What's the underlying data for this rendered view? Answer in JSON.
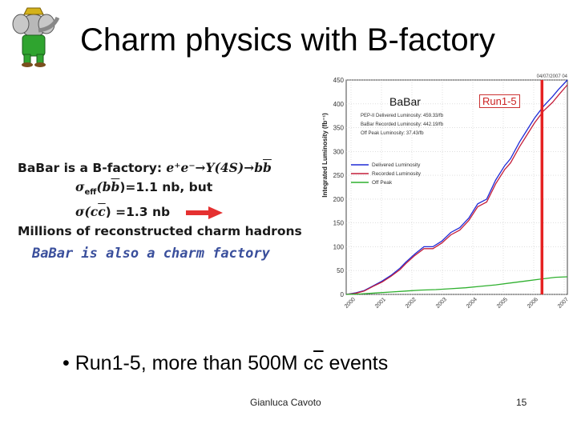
{
  "title": "Charm physics with B-factory",
  "logo": {
    "icon": "elephant-mascot-icon"
  },
  "left_block": {
    "line1_text": "BaBar is a B-factory: ",
    "line1_reaction": "e⁺e⁻→Υ(4S)→b",
    "line1_bbar": "b",
    "line2_sigma": "σ",
    "line2_sub": "eff",
    "line2_paren_open": "(b",
    "line2_bbar": "b",
    "line2_rest": ")=1.1 nb, but",
    "line3_sigma": "σ(c",
    "line3_cbar": "c",
    "line3_rest": ") =1.3 nb",
    "line4": "Millions of reconstructed charm hadrons",
    "line5": "BaBar is also a charm factory"
  },
  "bullet_text_before": "Run1-5, more than 500M c",
  "bullet_cbar": "c",
  "bullet_text_after": " events",
  "footer": {
    "author": "Gianluca Cavoto",
    "page": "15"
  },
  "chart_data": {
    "type": "line",
    "title": "BaBar",
    "ylabel": "Integrated Luminosity (fb⁻¹)",
    "ylim": [
      0,
      450
    ],
    "yticks": [
      0,
      50,
      100,
      150,
      200,
      250,
      300,
      350,
      400,
      450
    ],
    "xticks": [
      "2000",
      "2001",
      "2002",
      "2003",
      "2004",
      "2005",
      "2006",
      "2007"
    ],
    "header_date": "04/07/2007 04",
    "info_lines": [
      "PEP-II Delivered Luminosity: 459.33/fb",
      "BaBar Recorded Luminosity: 442.19/fb",
      "Off Peak Luminosity: 37.43/fb"
    ],
    "legend": [
      "Delivered Luminosity",
      "Recorded Luminosity",
      "Off Peak"
    ],
    "annotation": "Run1-5",
    "colors": {
      "delivered": "#1f2ad6",
      "recorded": "#c41e3a",
      "offpeak": "#2fb02f",
      "marker": "#e52222"
    },
    "series": [
      {
        "name": "Delivered Luminosity",
        "x": [
          0,
          0.3,
          0.6,
          0.9,
          1.2,
          1.5,
          1.8,
          2.0,
          2.3,
          2.6,
          2.9,
          3.2,
          3.5,
          3.8,
          4.1,
          4.4,
          4.7,
          5.0,
          5.3,
          5.5,
          5.8,
          6.0,
          6.3,
          6.6,
          6.9,
          7.1,
          7.4
        ],
        "values": [
          0,
          3,
          8,
          18,
          28,
          40,
          55,
          68,
          85,
          100,
          100,
          112,
          130,
          140,
          160,
          190,
          200,
          240,
          270,
          285,
          320,
          340,
          370,
          395,
          415,
          430,
          450
        ]
      },
      {
        "name": "Recorded Luminosity",
        "x": [
          0,
          0.3,
          0.6,
          0.9,
          1.2,
          1.5,
          1.8,
          2.0,
          2.3,
          2.6,
          2.9,
          3.2,
          3.5,
          3.8,
          4.1,
          4.4,
          4.7,
          5.0,
          5.3,
          5.5,
          5.8,
          6.0,
          6.3,
          6.6,
          6.9,
          7.1,
          7.4
        ],
        "values": [
          0,
          2,
          7,
          17,
          26,
          38,
          52,
          65,
          82,
          96,
          96,
          108,
          125,
          135,
          155,
          184,
          194,
          232,
          262,
          276,
          310,
          330,
          360,
          385,
          403,
          418,
          440
        ]
      },
      {
        "name": "Off Peak",
        "x": [
          0,
          0.5,
          1.0,
          1.5,
          2.0,
          2.5,
          3.0,
          3.5,
          4.0,
          4.5,
          5.0,
          5.5,
          6.0,
          6.5,
          7.0,
          7.4
        ],
        "values": [
          0,
          1,
          3,
          5,
          7,
          9,
          10,
          12,
          14,
          17,
          20,
          24,
          28,
          32,
          36,
          37
        ]
      }
    ]
  }
}
